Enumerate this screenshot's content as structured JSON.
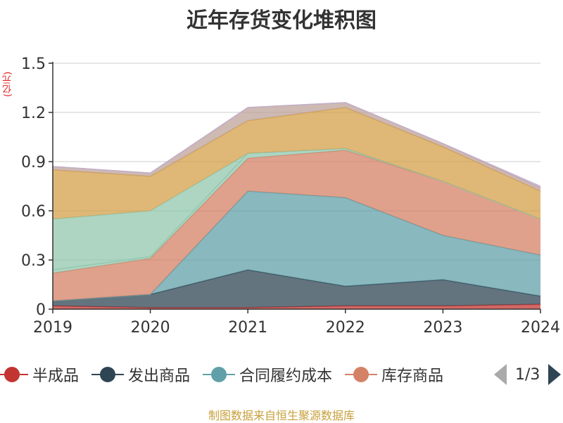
{
  "title": "近年存货变化堆积图",
  "y_unit": "(亿元)",
  "source": "制图数据来自恒生聚源数据库",
  "legend": {
    "items": [
      {
        "label": "半成品",
        "color": "#c23531"
      },
      {
        "label": "发出商品",
        "color": "#2f4554"
      },
      {
        "label": "合同履约成本",
        "color": "#61a0a8"
      },
      {
        "label": "库存商品",
        "color": "#d48265"
      }
    ],
    "page": "1/3"
  },
  "chart_data": {
    "type": "area",
    "stacked": true,
    "title": "近年存货变化堆积图",
    "ylabel": "(亿元)",
    "x": [
      "2019",
      "2020",
      "2021",
      "2022",
      "2023",
      "2024"
    ],
    "ylim": [
      0,
      1.5
    ],
    "yticks": [
      0,
      0.3,
      0.6,
      0.9,
      1.2,
      1.5
    ],
    "ytick_labels": [
      "0",
      "0.3",
      "0.6",
      "0.9",
      "1.2",
      "1.5"
    ],
    "grid": true,
    "legend_position": "bottom",
    "series": [
      {
        "name": "半成品",
        "color": "#c23531",
        "values": [
          0.02,
          0.01,
          0.01,
          0.02,
          0.02,
          0.03
        ]
      },
      {
        "name": "发出商品",
        "color": "#2f4554",
        "values": [
          0.03,
          0.08,
          0.23,
          0.12,
          0.16,
          0.05
        ]
      },
      {
        "name": "合同履约成本",
        "color": "#61a0a8",
        "values": [
          0.0,
          0.0,
          0.48,
          0.54,
          0.27,
          0.25
        ]
      },
      {
        "color": "#d48265",
        "values": [
          0.17,
          0.22,
          0.2,
          0.29,
          0.33,
          0.22
        ]
      },
      {
        "color": "#91c7ae",
        "values": [
          0.02,
          0.01,
          0.03,
          0.01,
          0.0,
          0.0
        ]
      },
      {
        "color": "#91c7ae",
        "values": [
          0.31,
          0.28,
          0.0,
          0.0,
          0.0,
          0.0
        ]
      },
      {
        "color": "#d4a04a",
        "values": [
          0.3,
          0.21,
          0.2,
          0.25,
          0.21,
          0.17
        ]
      },
      {
        "color": "#bda29a",
        "values": [
          0.02,
          0.02,
          0.08,
          0.03,
          0.02,
          0.02
        ]
      },
      {
        "color": "#c4b0cf",
        "values": [
          0.0,
          0.0,
          0.0,
          0.0,
          0.0,
          0.01
        ]
      }
    ]
  }
}
